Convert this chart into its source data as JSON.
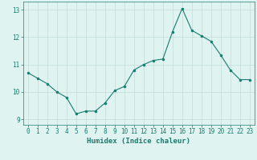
{
  "x": [
    0,
    1,
    2,
    3,
    4,
    5,
    6,
    7,
    8,
    9,
    10,
    11,
    12,
    13,
    14,
    15,
    16,
    17,
    18,
    19,
    20,
    21,
    22,
    23
  ],
  "y": [
    10.7,
    10.5,
    10.3,
    10.0,
    9.8,
    9.2,
    9.3,
    9.3,
    9.6,
    10.05,
    10.2,
    10.8,
    11.0,
    11.15,
    11.2,
    12.2,
    13.05,
    12.25,
    12.05,
    11.85,
    11.35,
    10.8,
    10.45,
    10.45
  ],
  "line_color": "#1a7a6e",
  "marker_color": "#1a7a6e",
  "bg_color": "#dff4f0",
  "grid_color": "#c0ddd8",
  "tick_color": "#1a7a6e",
  "xlabel": "Humidex (Indice chaleur)",
  "ylim": [
    8.8,
    13.3
  ],
  "xlim": [
    -0.5,
    23.5
  ],
  "yticks": [
    9,
    10,
    11,
    12,
    13
  ],
  "xticks": [
    0,
    1,
    2,
    3,
    4,
    5,
    6,
    7,
    8,
    9,
    10,
    11,
    12,
    13,
    14,
    15,
    16,
    17,
    18,
    19,
    20,
    21,
    22,
    23
  ],
  "fontsize_xlabel": 6.5,
  "fontsize_ticks": 5.5
}
